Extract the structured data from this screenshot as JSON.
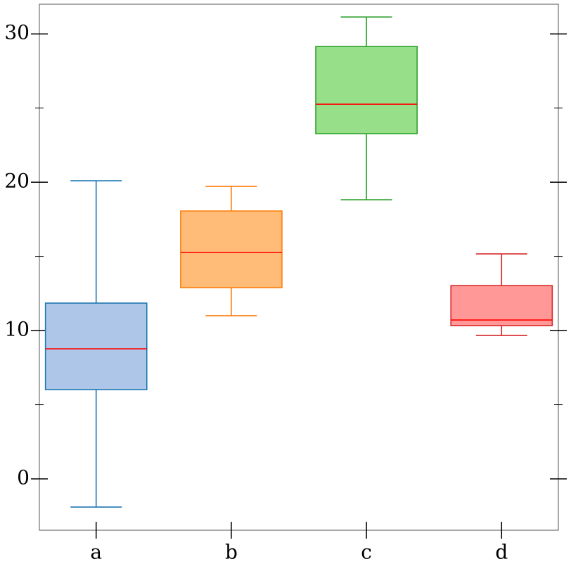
{
  "chart_data": {
    "type": "box",
    "categories": [
      "a",
      "b",
      "c",
      "d"
    ],
    "boxes": [
      {
        "whisker_low": -1.9,
        "q1": 6.02,
        "median": 8.77,
        "q3": 11.85,
        "whisker_high": 20.1,
        "color": "#1f77b4",
        "fill": "#aec7e8"
      },
      {
        "whisker_low": 11.0,
        "q1": 12.89,
        "median": 15.26,
        "q3": 18.06,
        "whisker_high": 19.72,
        "color": "#ff7f0e",
        "fill": "#ffbb78"
      },
      {
        "whisker_low": 18.82,
        "q1": 23.27,
        "median": 25.26,
        "q3": 29.15,
        "whisker_high": 31.14,
        "color": "#2ca02c",
        "fill": "#98df8a"
      },
      {
        "whisker_low": 9.67,
        "q1": 10.33,
        "median": 10.71,
        "q3": 13.03,
        "whisker_high": 15.17,
        "color": "#d62728",
        "fill": "#ff9896"
      }
    ],
    "median_color": "#ff0000",
    "ylim": [
      -3.46,
      32
    ],
    "yticks": [
      0,
      10,
      20,
      30
    ],
    "yminorticks": [
      5,
      15,
      25
    ]
  }
}
